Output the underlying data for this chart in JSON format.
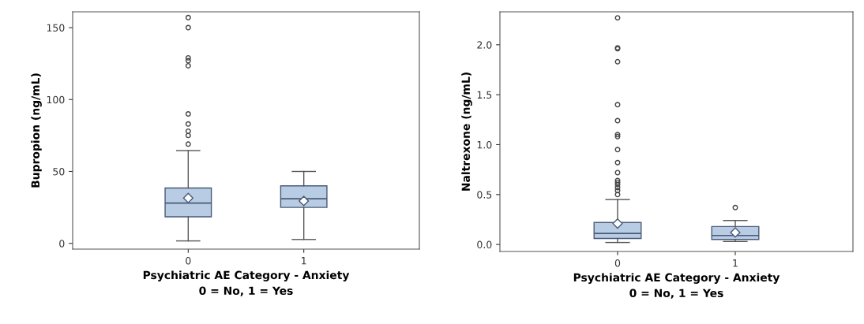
{
  "chart_data": [
    {
      "type": "box",
      "categories": [
        "0",
        "1"
      ],
      "xlabel": "Psychiatric AE Category - Anxiety\n0 = No, 1 = Yes",
      "ylabel": "Bupropion (ng/mL)",
      "ylim": [
        -4,
        161
      ],
      "yticks": [
        0,
        50,
        100,
        150
      ],
      "grid": false,
      "color": "#b8cce4",
      "boxes": [
        {
          "low": 1.7,
          "q1": 18.5,
          "median": 28,
          "q3": 38.5,
          "high": 64.5,
          "mean": 31.5,
          "outliers": [
            157,
            150,
            129,
            127,
            123.5,
            90,
            83,
            78,
            75,
            69
          ]
        },
        {
          "low": 2.7,
          "q1": 25,
          "median": 31,
          "q3": 40,
          "high": 50,
          "mean": 29.5
        }
      ]
    },
    {
      "type": "box",
      "categories": [
        "0",
        "1"
      ],
      "xlabel": "Psychiatric AE Category - Anxiety\n0 = No, 1 = Yes",
      "ylabel": "Naltrexone (ng/mL)",
      "ylim": [
        -0.07,
        2.33
      ],
      "yticks": [
        {
          "value": 0,
          "label": "0.0"
        },
        {
          "value": 0.5,
          "label": "0.5"
        },
        {
          "value": 1,
          "label": "1.0"
        },
        {
          "value": 1.5,
          "label": "1.5"
        },
        {
          "value": 2,
          "label": "2.0"
        }
      ],
      "grid": false,
      "color": "#b8cce4",
      "boxes": [
        {
          "low": 0.02,
          "q1": 0.06,
          "median": 0.11,
          "q3": 0.22,
          "high": 0.45,
          "mean": 0.21,
          "outliers": [
            2.27,
            1.97,
            1.96,
            1.83,
            1.4,
            1.24,
            1.1,
            1.08,
            0.95,
            0.82,
            0.72,
            0.64,
            0.62,
            0.6,
            0.57,
            0.54,
            0.5
          ]
        },
        {
          "low": 0.03,
          "q1": 0.05,
          "median": 0.09,
          "q3": 0.18,
          "high": 0.24,
          "mean": 0.12,
          "outliers": [
            0.37
          ]
        }
      ]
    }
  ]
}
